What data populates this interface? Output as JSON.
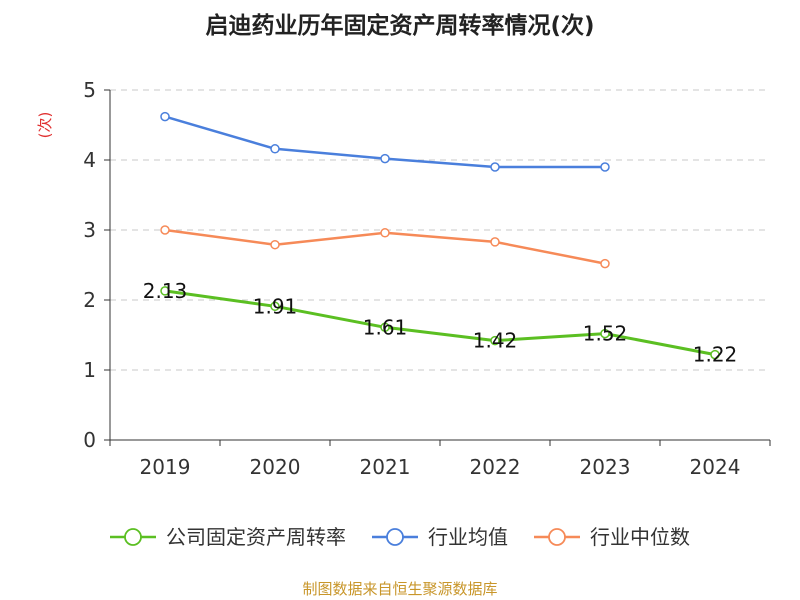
{
  "chart_data": {
    "type": "line",
    "title": "启迪药业历年固定资产周转率情况(次)",
    "ylabel": "(次)",
    "xlabel": "",
    "ylim": [
      0,
      5
    ],
    "yticks": [
      "0",
      "1",
      "2",
      "3",
      "4",
      "5"
    ],
    "categories": [
      "2019",
      "2020",
      "2021",
      "2022",
      "2023",
      "2024"
    ],
    "grid": "horizontal dashed",
    "legend_position": "bottom",
    "series": [
      {
        "name": "公司固定资产周转率",
        "color": "#5bbf22",
        "values": [
          2.13,
          1.91,
          1.61,
          1.42,
          1.52,
          1.22
        ],
        "labels": [
          "2.13",
          "1.91",
          "1.61",
          "1.42",
          "1.52",
          "1.22"
        ],
        "show_labels": true
      },
      {
        "name": "行业均值",
        "color": "#4a7fdc",
        "values": [
          4.62,
          4.16,
          4.02,
          3.9,
          3.9,
          null
        ],
        "show_labels": false
      },
      {
        "name": "行业中位数",
        "color": "#f68a58",
        "values": [
          3.0,
          2.79,
          2.96,
          2.83,
          2.52,
          null
        ],
        "show_labels": false
      }
    ]
  },
  "source": "制图数据来自恒生聚源数据库"
}
